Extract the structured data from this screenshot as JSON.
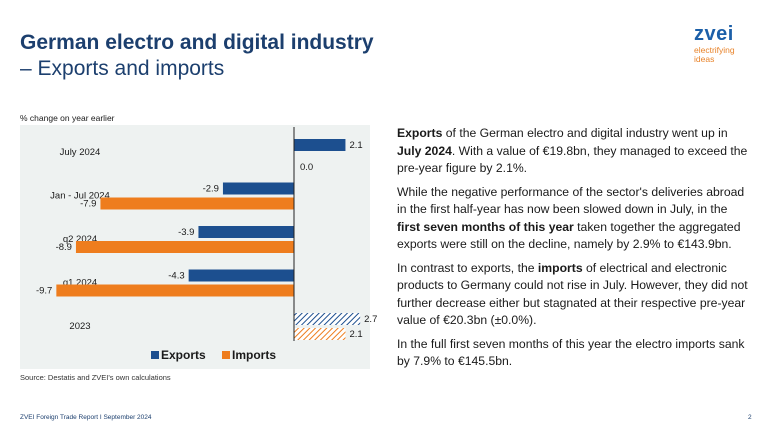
{
  "header": {
    "title": "German electro and digital industry",
    "subtitle": "– Exports and imports"
  },
  "logo": {
    "word": "zvei",
    "tagline_1": "electrifying",
    "tagline_2": "ideas"
  },
  "chart_data": {
    "type": "bar",
    "orientation": "horizontal",
    "unit_label": "% change on year earlier",
    "categories": [
      "July 2024",
      "Jan - Jul 2024",
      "q2 2024",
      "q1 2024",
      "2023"
    ],
    "series": [
      {
        "name": "Exports",
        "color": "#1c4f8f",
        "values": [
          2.1,
          -2.9,
          -3.9,
          -4.3,
          2.7
        ],
        "value_labels": [
          "2.1",
          "-2.9",
          "-3.9",
          "-4.3",
          "2.7"
        ]
      },
      {
        "name": "Imports",
        "color": "#ee7d1e",
        "values": [
          0.0,
          -7.9,
          -8.9,
          -9.7,
          2.1
        ],
        "value_labels": [
          "0.0",
          "-7.9",
          "-8.9",
          "-9.7",
          "2.1"
        ]
      }
    ],
    "hatched_categories": [
      "2023"
    ],
    "legend_position": "bottom",
    "xlim": [
      -11,
      4
    ],
    "grid": false
  },
  "source": "Source: Destatis and ZVEI's own calculations",
  "text": {
    "p1": [
      {
        "t": "Exports",
        "b": true
      },
      {
        "t": " of the German electro and digital industry went up in ",
        "b": false
      },
      {
        "t": "July 2024",
        "b": true
      },
      {
        "t": ". With a value of €19.8bn, they managed to exceed the pre-year figure by 2.1%.",
        "b": false
      }
    ],
    "p2": [
      {
        "t": "While the negative performance of the sector's deliveries abroad in the first half-year has now been slowed down in July, in the ",
        "b": false
      },
      {
        "t": "first seven months of this year",
        "b": true
      },
      {
        "t": " taken together the aggregated exports were still on the decline, namely by 2.9% to €143.9bn.",
        "b": false
      }
    ],
    "p3": [
      {
        "t": "In contrast to exports, the ",
        "b": false
      },
      {
        "t": "imports",
        "b": true
      },
      {
        "t": " of electrical and electronic products to Germany could not rise in July. However, they did not further decrease either but stagnated at their respective pre-year value of €20.3bn (±0.0%).",
        "b": false
      }
    ],
    "p4": [
      {
        "t": "In the full first seven months of this year the electro imports sank by 7.9% to €145.5bn.",
        "b": false
      }
    ]
  },
  "footer": {
    "left": "ZVEI Foreign Trade Report I September 2024",
    "page": "2"
  }
}
